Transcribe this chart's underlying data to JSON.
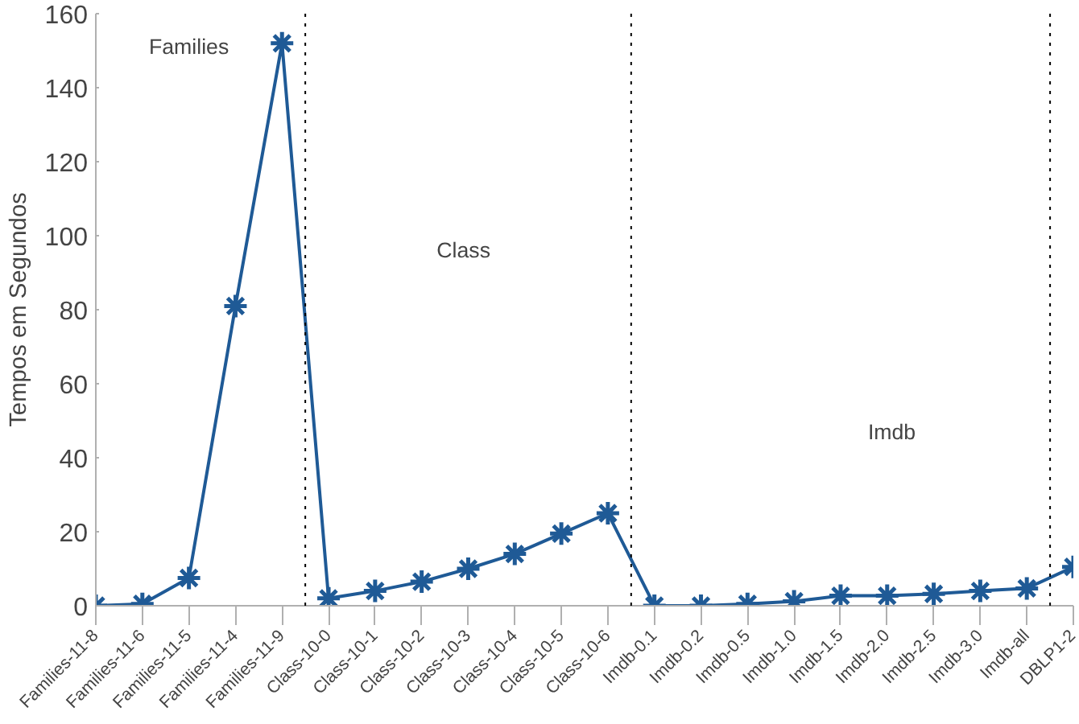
{
  "chart_data": {
    "type": "line",
    "ylabel": "Tempos em Segundos",
    "categories": [
      "Families-11-8",
      "Families-11-6",
      "Families-11-5",
      "Families-11-4",
      "Families-11-9",
      "Class-10-0",
      "Class-10-1",
      "Class-10-2",
      "Class-10-3",
      "Class-10-4",
      "Class-10-5",
      "Class-10-6",
      "Imdb-0.1",
      "Imdb-0.2",
      "Imdb-0.5",
      "Imdb-1.0",
      "Imdb-1.5",
      "Imdb-2.0",
      "Imdb-2.5",
      "Imdb-3.0",
      "Imdb-all",
      "DBLP1-2"
    ],
    "series": [
      {
        "color": "#1f5a96",
        "values": [
          0,
          0.5,
          7.5,
          81,
          152,
          2,
          4,
          6.5,
          10,
          14,
          19.5,
          25,
          0,
          0,
          0.5,
          1.2,
          2.7,
          2.7,
          3.2,
          4,
          4.7,
          10.5
        ]
      }
    ],
    "marker": "cross",
    "line_style": "solid",
    "grid": false,
    "ylim": [
      0,
      160
    ],
    "yticks": [
      0,
      20,
      40,
      60,
      80,
      100,
      120,
      140,
      160
    ],
    "annotations": [
      "Families",
      "Class",
      "Imdb"
    ]
  }
}
